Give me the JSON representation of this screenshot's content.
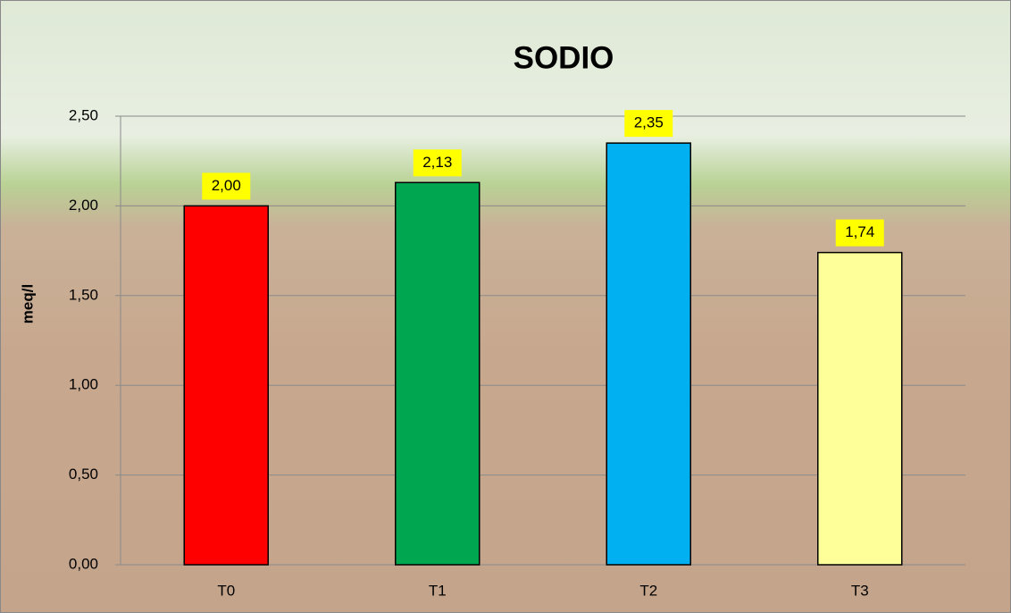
{
  "chart_data": {
    "type": "bar",
    "title": "SODIO",
    "y_label": "meq/l",
    "categories": [
      "T0",
      "T1",
      "T2",
      "T3"
    ],
    "values": [
      2.0,
      2.13,
      2.35,
      1.74
    ],
    "value_labels": [
      "2,00",
      "2,13",
      "2,35",
      "1,74"
    ],
    "colors": [
      "#ff0000",
      "#00a650",
      "#00b0f0",
      "#ffff99"
    ],
    "ylim": [
      0,
      2.5
    ],
    "yticks": [
      {
        "value": 0,
        "label": "0,00"
      },
      {
        "value": 0.5,
        "label": "0,50"
      },
      {
        "value": 1,
        "label": "1,00"
      },
      {
        "value": 1.5,
        "label": "1,50"
      },
      {
        "value": 2,
        "label": "2,00"
      },
      {
        "value": 2.5,
        "label": "2,50"
      }
    ],
    "grid": true
  }
}
